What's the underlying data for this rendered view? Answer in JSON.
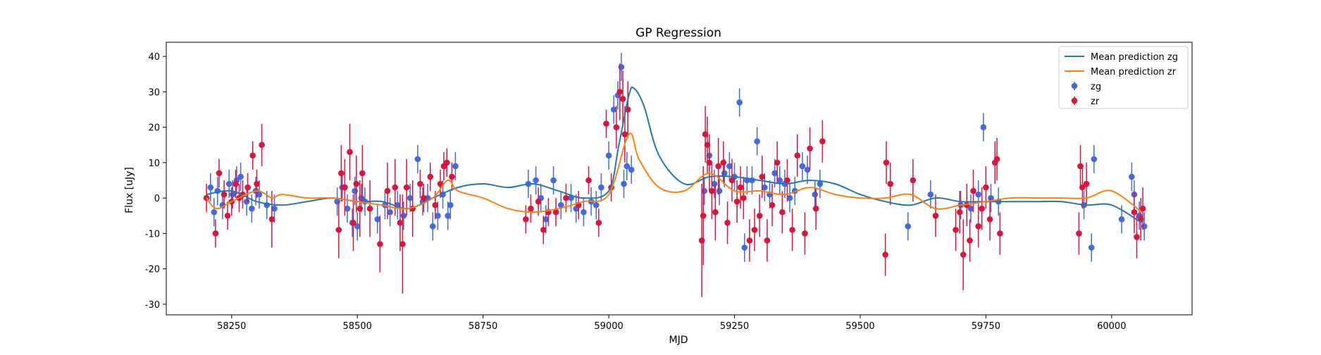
{
  "chart_data": {
    "type": "scatter",
    "title": "GP Regression",
    "xlabel": "MJD",
    "ylabel": "Flux [uJy]",
    "xlim": [
      58120,
      60160
    ],
    "ylim": [
      -33,
      44
    ],
    "xticks": [
      58250,
      58500,
      58750,
      59000,
      59250,
      59500,
      59750,
      60000
    ],
    "yticks": [
      -30,
      -20,
      -10,
      0,
      10,
      20,
      30,
      40
    ],
    "grid": false,
    "legend_position": "top-right",
    "lines": [
      {
        "name": "Mean prediction zg",
        "color": "#1f77b4",
        "x": [
          58200,
          58250,
          58300,
          58350,
          58400,
          58450,
          58500,
          58550,
          58600,
          58650,
          58700,
          58750,
          58800,
          58850,
          58900,
          58950,
          59000,
          59020,
          59040,
          59050,
          59070,
          59100,
          59150,
          59200,
          59250,
          59300,
          59350,
          59400,
          59450,
          59500,
          59550,
          59600,
          59650,
          59700,
          59750,
          59800,
          59850,
          59900,
          59950,
          60000,
          60060
        ],
        "y": [
          1,
          2,
          -1,
          -2,
          -1,
          0,
          -1,
          -1,
          -3,
          0,
          3,
          4,
          3,
          4,
          2,
          0,
          2,
          15,
          29,
          31,
          26,
          12,
          4,
          6,
          6,
          5,
          4,
          5,
          4,
          1,
          -1,
          -2,
          0,
          -1,
          -1,
          -1,
          -1,
          -1,
          -2,
          -2,
          -7
        ]
      },
      {
        "name": "Mean prediction zr",
        "color": "#ff7f0e",
        "x": [
          58200,
          58220,
          58250,
          58300,
          58330,
          58350,
          58400,
          58450,
          58500,
          58550,
          58600,
          58650,
          58680,
          58700,
          58750,
          58800,
          58850,
          58900,
          58950,
          59000,
          59040,
          59060,
          59100,
          59150,
          59200,
          59250,
          59300,
          59350,
          59400,
          59450,
          59500,
          59550,
          59600,
          59650,
          59700,
          59750,
          59800,
          59850,
          59900,
          59950,
          60000,
          60060
        ],
        "y": [
          0,
          -3,
          -1,
          2,
          0,
          1,
          0,
          0,
          -1,
          -2,
          -3,
          0,
          5,
          2,
          0,
          -3,
          -4,
          -3,
          -1,
          1,
          18,
          11,
          3,
          2,
          7,
          2,
          2,
          1,
          3,
          1,
          0,
          0,
          1,
          -3,
          -2,
          -1,
          0,
          0,
          0,
          0,
          2,
          -4
        ]
      }
    ],
    "series": [
      {
        "name": "zg",
        "color": "#4169e1",
        "x": [
          58208,
          58215,
          58222,
          58232,
          58245,
          58252,
          58260,
          58268,
          58280,
          58290,
          58298,
          58305,
          58320,
          58335,
          58460,
          58470,
          58480,
          58490,
          58495,
          58500,
          58508,
          58515,
          58540,
          58555,
          58565,
          58580,
          58592,
          58605,
          58620,
          58630,
          58640,
          58650,
          58660,
          58670,
          58680,
          58685,
          58695,
          58840,
          58855,
          58865,
          58875,
          58890,
          58905,
          58925,
          58935,
          58950,
          58965,
          58975,
          58985,
          59000,
          59010,
          59018,
          59025,
          59030,
          59036,
          59045,
          59190,
          59200,
          59210,
          59220,
          59230,
          59240,
          59250,
          59260,
          59270,
          59275,
          59285,
          59295,
          59310,
          59320,
          59330,
          59340,
          59350,
          59360,
          59370,
          59385,
          59395,
          59410,
          59420,
          59595,
          59640,
          59700,
          59720,
          59735,
          59745,
          59760,
          59775,
          59945,
          59960,
          59965,
          60020,
          60040,
          60045,
          60055,
          60065
        ],
        "y": [
          3,
          -4,
          2,
          -2,
          4,
          1,
          5,
          6,
          -1,
          -3,
          2,
          1,
          -2,
          -3,
          -1,
          3,
          -3,
          -7,
          2,
          -8,
          0,
          -1,
          -6,
          -2,
          -4,
          -2,
          -5,
          0,
          11,
          -1,
          0,
          -8,
          -5,
          1,
          -5,
          -2,
          9,
          4,
          5,
          0,
          -6,
          5,
          -2,
          0,
          -3,
          -4,
          -1,
          -2,
          3,
          12,
          25,
          29,
          37,
          4,
          9,
          8,
          2,
          12,
          4,
          2,
          7,
          9,
          6,
          27,
          -14,
          5,
          5,
          16,
          3,
          1,
          7,
          5,
          4,
          0,
          2,
          9,
          8,
          1,
          4,
          -8,
          1,
          -2,
          -3,
          1,
          20,
          0,
          -1,
          -2,
          -14,
          11,
          -6,
          6,
          1,
          -5,
          -8
        ]
      },
      {
        "name": "zr",
        "color": "#dc143c",
        "x": [
          58200,
          58218,
          58225,
          58235,
          58242,
          58250,
          58258,
          58265,
          58272,
          58282,
          58292,
          58300,
          58310,
          58330,
          58463,
          58468,
          58475,
          58485,
          58492,
          58498,
          58505,
          58510,
          58525,
          58545,
          58560,
          58575,
          58585,
          58590,
          58598,
          58610,
          58625,
          58632,
          58645,
          58655,
          58665,
          58672,
          58678,
          58688,
          58835,
          58845,
          58860,
          58870,
          58880,
          58895,
          58915,
          58940,
          58960,
          58980,
          58995,
          59005,
          59015,
          59022,
          59028,
          59032,
          59038,
          59185,
          59188,
          59192,
          59196,
          59200,
          59205,
          59212,
          59218,
          59228,
          59236,
          59245,
          59255,
          59262,
          59268,
          59280,
          59290,
          59300,
          59305,
          59315,
          59325,
          59335,
          59345,
          59355,
          59365,
          59375,
          59390,
          59400,
          59412,
          59425,
          59550,
          59552,
          59560,
          59605,
          59650,
          59690,
          59698,
          59705,
          59712,
          59718,
          59725,
          59735,
          59742,
          59750,
          59758,
          59768,
          59772,
          59778,
          59935,
          59938,
          59942,
          59950,
          60045,
          60050,
          60058,
          60062
        ],
        "y": [
          0,
          -10,
          7,
          1,
          -5,
          -1,
          4,
          0,
          1,
          3,
          12,
          4,
          15,
          -6,
          -9,
          7,
          3,
          13,
          -7,
          4,
          -3,
          7,
          -3,
          -13,
          2,
          3,
          -7,
          -13,
          3,
          -3,
          4,
          0,
          6,
          -2,
          4,
          9,
          10,
          6,
          -6,
          -3,
          -1,
          -9,
          -4,
          -4,
          0,
          -2,
          5,
          -7,
          21,
          3,
          20,
          30,
          28,
          18,
          25,
          -12,
          -5,
          18,
          15,
          10,
          2,
          -4,
          9,
          10,
          -7,
          5,
          -1,
          3,
          0,
          -12,
          -9,
          -5,
          6,
          -12,
          -2,
          10,
          -4,
          5,
          -9,
          12,
          -10,
          14,
          -3,
          16,
          -16,
          10,
          4,
          5,
          -5,
          -9,
          -4,
          -16,
          -2,
          -12,
          2,
          -8,
          -3,
          3,
          -6,
          10,
          11,
          -10,
          -10,
          9,
          3,
          4,
          -4,
          -11,
          -6,
          -3
        ],
        "yerr": [
          4,
          4,
          4,
          4,
          4,
          4,
          4,
          4,
          4,
          4,
          4,
          4,
          6,
          8,
          8,
          8,
          8,
          8,
          8,
          8,
          8,
          8,
          8,
          8,
          8,
          8,
          8,
          14,
          8,
          8,
          4,
          4,
          4,
          4,
          4,
          4,
          4,
          4,
          4,
          4,
          4,
          4,
          4,
          4,
          4,
          4,
          4,
          4,
          4,
          4,
          6,
          8,
          8,
          8,
          8,
          16,
          14,
          8,
          8,
          8,
          8,
          8,
          8,
          6,
          6,
          6,
          6,
          6,
          6,
          6,
          6,
          6,
          6,
          6,
          6,
          6,
          6,
          6,
          6,
          6,
          6,
          6,
          6,
          6,
          6,
          6,
          6,
          6,
          6,
          6,
          6,
          10,
          6,
          6,
          6,
          6,
          6,
          6,
          6,
          6,
          6,
          6,
          6,
          6,
          6,
          6,
          6,
          6,
          6,
          6
        ]
      }
    ]
  }
}
